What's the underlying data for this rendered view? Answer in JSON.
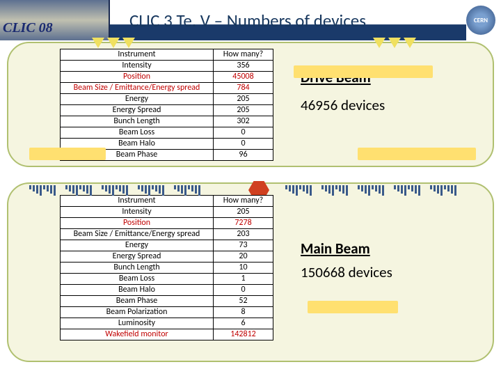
{
  "header": {
    "badge": "CLIC 08",
    "title": "CLIC 3 Te. V – Numbers of devices",
    "cern": "CERN"
  },
  "driveBeam": {
    "label": "Drive Beam",
    "count": "46956 devices",
    "headInstrument": "Instrument",
    "headCount": "How many?",
    "rows": [
      {
        "name": "Intensity",
        "val": "356",
        "red": false
      },
      {
        "name": "Position",
        "val": "45008",
        "red": true
      },
      {
        "name": "Beam Size / Emittance/Energy spread",
        "val": "784",
        "red": true
      },
      {
        "name": "Energy",
        "val": "205",
        "red": false
      },
      {
        "name": "Energy Spread",
        "val": "205",
        "red": false
      },
      {
        "name": "Bunch Length",
        "val": "302",
        "red": false
      },
      {
        "name": "Beam Loss",
        "val": "0",
        "red": false
      },
      {
        "name": "Beam Halo",
        "val": "0",
        "red": false
      },
      {
        "name": "Beam Phase",
        "val": "96",
        "red": false
      }
    ]
  },
  "mainBeam": {
    "label": "Main Beam",
    "count": "150668 devices",
    "headInstrument": "Instrument",
    "headCount": "How many?",
    "rows": [
      {
        "name": "Intensity",
        "val": "205",
        "red": false
      },
      {
        "name": "Position",
        "val": "7278",
        "red": true
      },
      {
        "name": "Beam Size / Emittance/Energy spread",
        "val": "203",
        "red": false
      },
      {
        "name": "Energy",
        "val": "73",
        "red": false
      },
      {
        "name": "Energy Spread",
        "val": "20",
        "red": false
      },
      {
        "name": "Bunch Length",
        "val": "10",
        "red": false
      },
      {
        "name": "Beam Loss",
        "val": "1",
        "red": false
      },
      {
        "name": "Beam Halo",
        "val": "0",
        "red": false
      },
      {
        "name": "Beam Phase",
        "val": "52",
        "red": false
      },
      {
        "name": "Beam Polarization",
        "val": "8",
        "red": false
      },
      {
        "name": "Luminosity",
        "val": "6",
        "red": false
      },
      {
        "name": "Wakefield monitor",
        "val": "142812",
        "red": true
      }
    ]
  }
}
